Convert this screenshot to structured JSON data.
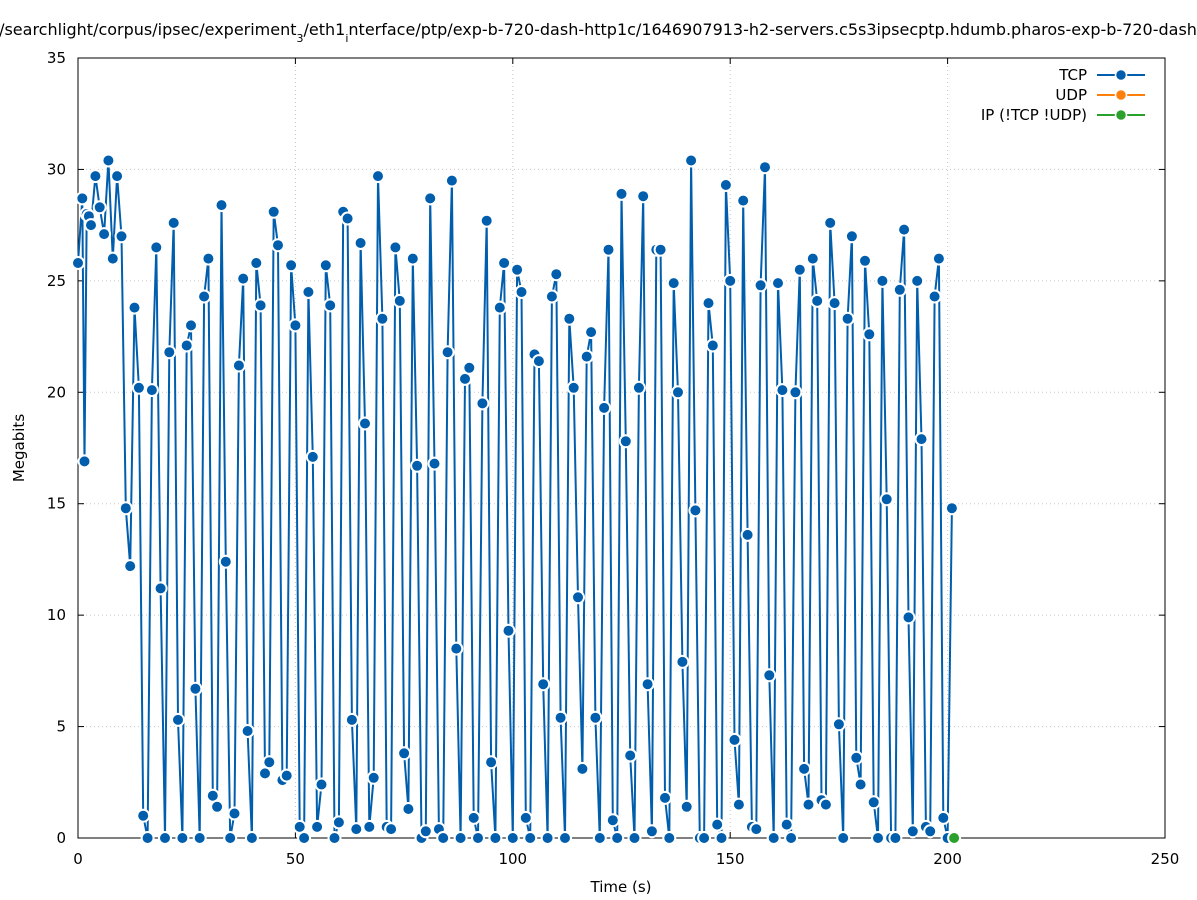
{
  "chart_data": {
    "type": "line",
    "title_prefix": "/searchlight/corpus/ipsec/experiment",
    "title_sub": "3",
    "title_mid": "/eth1",
    "title_sub2": "i",
    "title_suffix": "nterface/ptp/exp-b-720-dash-http1c/1646907913-h2-servers.c5s3ipsecptp.hdumb.pharos-exp-b-720-dash",
    "xlabel": "Time (s)",
    "ylabel": "Megabits",
    "xlim": [
      0,
      250
    ],
    "ylim": [
      0,
      35
    ],
    "xticks": [
      0,
      50,
      100,
      150,
      200,
      250
    ],
    "yticks": [
      0,
      5,
      10,
      15,
      20,
      25,
      30,
      35
    ],
    "grid": true,
    "legend_position": "top-right",
    "series": [
      {
        "name": "TCP",
        "color": "#005ead",
        "points": [
          [
            0,
            25.8
          ],
          [
            1,
            28.7
          ],
          [
            1.5,
            16.9
          ],
          [
            2,
            28
          ],
          [
            2.5,
            27.9
          ],
          [
            3,
            27.5
          ],
          [
            4,
            29.7
          ],
          [
            5,
            28.3
          ],
          [
            6,
            27.1
          ],
          [
            7,
            30.4
          ],
          [
            8,
            26
          ],
          [
            9,
            29.7
          ],
          [
            10,
            27
          ],
          [
            11,
            14.8
          ],
          [
            12,
            12.2
          ],
          [
            13,
            23.8
          ],
          [
            14,
            20.2
          ],
          [
            15,
            1
          ],
          [
            16,
            0
          ],
          [
            17,
            20.1
          ],
          [
            18,
            26.5
          ],
          [
            19,
            11.2
          ],
          [
            20,
            0
          ],
          [
            21,
            21.8
          ],
          [
            22,
            27.6
          ],
          [
            23,
            5.3
          ],
          [
            24,
            0
          ],
          [
            25,
            22.1
          ],
          [
            26,
            23
          ],
          [
            27,
            6.7
          ],
          [
            28,
            0
          ],
          [
            29,
            24.3
          ],
          [
            30,
            26
          ],
          [
            31,
            1.9
          ],
          [
            32,
            1.4
          ],
          [
            33,
            28.4
          ],
          [
            34,
            12.4
          ],
          [
            35,
            0
          ],
          [
            36,
            1.1
          ],
          [
            37,
            21.2
          ],
          [
            38,
            25.1
          ],
          [
            39,
            4.8
          ],
          [
            40,
            0
          ],
          [
            41,
            25.8
          ],
          [
            42,
            23.9
          ],
          [
            43,
            2.9
          ],
          [
            44,
            3.4
          ],
          [
            45,
            28.1
          ],
          [
            46,
            26.6
          ],
          [
            47,
            2.6
          ],
          [
            48,
            2.8
          ],
          [
            49,
            25.7
          ],
          [
            50,
            23
          ],
          [
            51,
            0.5
          ],
          [
            52,
            0
          ],
          [
            53,
            24.5
          ],
          [
            54,
            17.1
          ],
          [
            55,
            0.5
          ],
          [
            56,
            2.4
          ],
          [
            57,
            25.7
          ],
          [
            58,
            23.9
          ],
          [
            59,
            0
          ],
          [
            60,
            0.7
          ],
          [
            61,
            28.1
          ],
          [
            62,
            27.8
          ],
          [
            63,
            5.3
          ],
          [
            64,
            0.4
          ],
          [
            65,
            26.7
          ],
          [
            66,
            18.6
          ],
          [
            67,
            0.5
          ],
          [
            68,
            2.7
          ],
          [
            69,
            29.7
          ],
          [
            70,
            23.3
          ],
          [
            71,
            0.5
          ],
          [
            72,
            0.4
          ],
          [
            73,
            26.5
          ],
          [
            74,
            24.1
          ],
          [
            75,
            3.8
          ],
          [
            76,
            1.3
          ],
          [
            77,
            26
          ],
          [
            78,
            16.7
          ],
          [
            79,
            0
          ],
          [
            80,
            0.3
          ],
          [
            81,
            28.7
          ],
          [
            82,
            16.8
          ],
          [
            83,
            0.4
          ],
          [
            84,
            0
          ],
          [
            85,
            21.8
          ],
          [
            86,
            29.5
          ],
          [
            87,
            8.5
          ],
          [
            88,
            0
          ],
          [
            89,
            20.6
          ],
          [
            90,
            21.1
          ],
          [
            91,
            0.9
          ],
          [
            92,
            0
          ],
          [
            93,
            19.5
          ],
          [
            94,
            27.7
          ],
          [
            95,
            3.4
          ],
          [
            96,
            0
          ],
          [
            97,
            23.8
          ],
          [
            98,
            25.8
          ],
          [
            99,
            9.3
          ],
          [
            100,
            0
          ],
          [
            101,
            25.5
          ],
          [
            102,
            24.5
          ],
          [
            103,
            0.9
          ],
          [
            104,
            0
          ],
          [
            105,
            21.7
          ],
          [
            106,
            21.4
          ],
          [
            107,
            6.9
          ],
          [
            108,
            0
          ],
          [
            109,
            24.3
          ],
          [
            110,
            25.3
          ],
          [
            111,
            5.4
          ],
          [
            112,
            0
          ],
          [
            113,
            23.3
          ],
          [
            114,
            20.2
          ],
          [
            115,
            10.8
          ],
          [
            116,
            3.1
          ],
          [
            117,
            21.6
          ],
          [
            118,
            22.7
          ],
          [
            119,
            5.4
          ],
          [
            120,
            0
          ],
          [
            121,
            19.3
          ],
          [
            122,
            26.4
          ],
          [
            123,
            0.8
          ],
          [
            124,
            0
          ],
          [
            125,
            28.9
          ],
          [
            126,
            17.8
          ],
          [
            127,
            3.7
          ],
          [
            128,
            0
          ],
          [
            129,
            20.2
          ],
          [
            130,
            28.8
          ],
          [
            131,
            6.9
          ],
          [
            132,
            0.3
          ],
          [
            133,
            26.4
          ],
          [
            134,
            26.4
          ],
          [
            135,
            1.8
          ],
          [
            136,
            0
          ],
          [
            137,
            24.9
          ],
          [
            138,
            20
          ],
          [
            139,
            7.9
          ],
          [
            140,
            1.4
          ],
          [
            141,
            30.4
          ],
          [
            142,
            14.7
          ],
          [
            143,
            0
          ],
          [
            144,
            0
          ],
          [
            145,
            24
          ],
          [
            146,
            22.1
          ],
          [
            147,
            0.6
          ],
          [
            148,
            0
          ],
          [
            149,
            29.3
          ],
          [
            150,
            25
          ],
          [
            151,
            4.4
          ],
          [
            152,
            1.5
          ],
          [
            153,
            28.6
          ],
          [
            154,
            13.6
          ],
          [
            155,
            0.5
          ],
          [
            156,
            0.4
          ],
          [
            157,
            24.8
          ],
          [
            158,
            30.1
          ],
          [
            159,
            7.3
          ],
          [
            160,
            0
          ],
          [
            161,
            24.9
          ],
          [
            162,
            20.1
          ],
          [
            163,
            0.6
          ],
          [
            164,
            0
          ],
          [
            165,
            20
          ],
          [
            166,
            25.5
          ],
          [
            167,
            3.1
          ],
          [
            168,
            1.5
          ],
          [
            169,
            26
          ],
          [
            170,
            24.1
          ],
          [
            171,
            1.7
          ],
          [
            172,
            1.5
          ],
          [
            173,
            27.6
          ],
          [
            174,
            24
          ],
          [
            175,
            5.1
          ],
          [
            176,
            0
          ],
          [
            177,
            23.3
          ],
          [
            178,
            27
          ],
          [
            179,
            3.6
          ],
          [
            180,
            2.4
          ],
          [
            181,
            25.9
          ],
          [
            182,
            22.6
          ],
          [
            183,
            1.6
          ],
          [
            184,
            0
          ],
          [
            185,
            25
          ],
          [
            186,
            15.2
          ],
          [
            187,
            0
          ],
          [
            188,
            0
          ],
          [
            189,
            24.6
          ],
          [
            190,
            27.3
          ],
          [
            191,
            9.9
          ],
          [
            192,
            0.3
          ],
          [
            193,
            25
          ],
          [
            194,
            17.9
          ],
          [
            195,
            0.5
          ],
          [
            196,
            0.3
          ],
          [
            197,
            24.3
          ],
          [
            198,
            26
          ],
          [
            199,
            0.9
          ],
          [
            200,
            0
          ],
          [
            201,
            14.8
          ]
        ]
      },
      {
        "name": "UDP",
        "color": "#ff7f0e",
        "points": []
      },
      {
        "name": "IP (!TCP  !UDP)",
        "color": "#2ca02c",
        "points": [
          [
            201.5,
            0
          ]
        ]
      }
    ]
  }
}
